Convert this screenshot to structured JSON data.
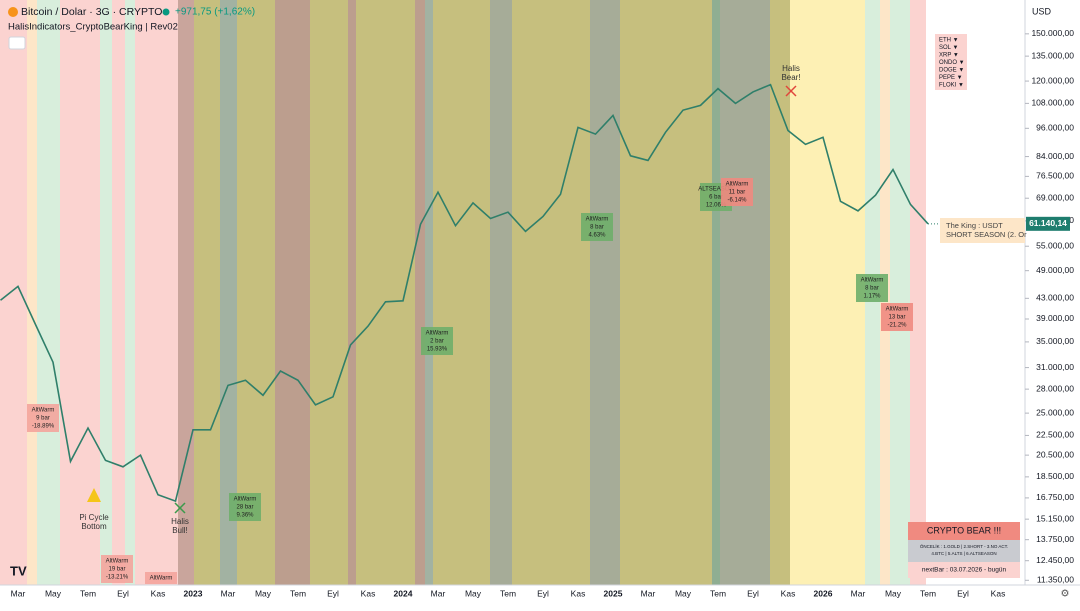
{
  "chart_data": {
    "type": "line",
    "title": "Bitcoin / Dolar · 3G · CRYPTO",
    "change": "+971,75 (+1,62%)",
    "indicator": "HalisIndicators_CryptoBearKing | Rev02",
    "currency": "USD",
    "log_scale": true,
    "color": "#2f7f6a",
    "grid": false,
    "categories": [
      null,
      null,
      "Mar",
      null,
      "May",
      null,
      "Tem",
      null,
      "Eyl",
      null,
      "Kas",
      null,
      "2023",
      null,
      "Mar",
      null,
      "May",
      null,
      "Tem",
      null,
      "Eyl",
      null,
      "Kas",
      null,
      "2024",
      null,
      "Mar",
      null,
      "May",
      null,
      "Tem",
      null,
      "Eyl",
      null,
      "Kas",
      null,
      "2025",
      null,
      "Mar",
      null,
      "May",
      null,
      "Tem",
      null,
      "Eyl",
      null,
      "Kas",
      null,
      "2026",
      null,
      "Mar",
      null,
      "May",
      null,
      "Tem",
      null,
      "Eyl",
      null,
      "Kas",
      null
    ],
    "values": [
      null,
      42600,
      45500,
      38000,
      31800,
      19900,
      23300,
      20000,
      19400,
      20500,
      17000,
      16500,
      23100,
      23100,
      28500,
      29200,
      27200,
      30500,
      29200,
      26000,
      27000,
      34500,
      37700,
      42300,
      42500,
      61000,
      71000,
      60600,
      67500,
      62700,
      64600,
      59000,
      63300,
      70300,
      96400,
      93400,
      102000,
      84300,
      82500,
      94200,
      104600,
      107000,
      115800,
      108000,
      114000,
      118000,
      95000,
      89000,
      92000,
      68000,
      65000,
      70000,
      79000,
      67000,
      61140.14,
      null,
      null,
      null,
      null,
      null
    ],
    "value_labels": [
      null,
      null,
      null,
      null,
      null,
      null,
      null,
      null,
      null,
      null,
      null,
      null,
      null,
      null,
      null,
      null,
      null,
      null,
      null,
      null,
      null,
      null,
      null,
      null,
      null,
      null,
      null,
      null,
      null,
      null,
      null,
      null,
      null,
      null,
      null,
      null,
      null,
      null,
      null,
      null,
      null,
      null,
      null,
      null,
      null,
      null,
      null,
      null,
      null,
      null,
      null,
      null,
      null,
      null,
      "61.140,14",
      null,
      null,
      null,
      null,
      null
    ],
    "ylim": [
      11100,
      176000
    ],
    "yticks": [
      {
        "value": 150000,
        "label": "150.000,00"
      },
      {
        "value": 135000,
        "label": "135.000,00"
      },
      {
        "value": 120000,
        "label": "120.000,00"
      },
      {
        "value": 108000,
        "label": "108.000,00"
      },
      {
        "value": 96000,
        "label": "96.000,00"
      },
      {
        "value": 84000,
        "label": "84.000,00"
      },
      {
        "value": 76500,
        "label": "76.500,00"
      },
      {
        "value": 69000,
        "label": "69.000,00"
      },
      {
        "value": 62000,
        "label": "62.000,00"
      },
      {
        "value": 55000,
        "label": "55.000,00"
      },
      {
        "value": 49000,
        "label": "49.000,00"
      },
      {
        "value": 43000,
        "label": "43.000,00"
      },
      {
        "value": 39000,
        "label": "39.000,00"
      },
      {
        "value": 35000,
        "label": "35.000,00"
      },
      {
        "value": 31000,
        "label": "31.000,00"
      },
      {
        "value": 28000,
        "label": "28.000,00"
      },
      {
        "value": 25000,
        "label": "25.000,00"
      },
      {
        "value": 22500,
        "label": "22.500,00"
      },
      {
        "value": 20500,
        "label": "20.500,00"
      },
      {
        "value": 18500,
        "label": "18.500,00"
      },
      {
        "value": 16750,
        "label": "16.750,00"
      },
      {
        "value": 15150,
        "label": "15.150,00"
      },
      {
        "value": 13750,
        "label": "13.750,00"
      },
      {
        "value": 12450,
        "label": "12.450,00"
      },
      {
        "value": 11350,
        "label": "11.350,00"
      }
    ],
    "annotations": [
      {
        "lines": [
          "AltWarm",
          "9 bar",
          "-18.89%"
        ],
        "color": "#f4a49c"
      },
      {
        "lines": [
          "AltWarm",
          "19 bar",
          "-13.21%"
        ],
        "color": "#f4a49c"
      },
      {
        "lines": [
          "AltWarm"
        ],
        "color": "#f4a49c"
      },
      {
        "lines": [
          "AltWarm",
          "28 bar",
          "9.36%"
        ],
        "color": "#6fae6a"
      },
      {
        "lines": [
          "AltWarm",
          "2 bar",
          "15.93%"
        ],
        "color": "#6fae6a"
      },
      {
        "lines": [
          "AltWarm",
          "8 bar",
          "4.63%"
        ],
        "color": "#6fae6a"
      },
      {
        "lines": [
          "ALTSEASON",
          "6 bar",
          "12.06%"
        ],
        "color": "#6fae6a"
      },
      {
        "lines": [
          "AltWarm",
          "11 bar",
          "-6.14%"
        ],
        "color": "#f08a80"
      },
      {
        "lines": [
          "AltWarm",
          "8 bar",
          "1.17%"
        ],
        "color": "#6fae6a"
      },
      {
        "lines": [
          "AltWarm",
          "13 bar",
          "-21.2%"
        ],
        "color": "#f08a80"
      }
    ],
    "signals": [
      {
        "lines": [
          "Pi Cycle",
          "Bottom"
        ]
      },
      {
        "lines": [
          "Halis",
          "Bull!"
        ]
      },
      {
        "lines": [
          "Halis",
          "Bear!"
        ]
      }
    ],
    "coins": [
      "ETH ▼",
      "SOL ▼",
      "XRP ▼",
      "ONDO ▼",
      "DOGE ▼",
      "PEPE ▼",
      "FLOKI ▼"
    ],
    "king": [
      "The King : USDT",
      "SHORT SEASON (2. Or"
    ],
    "table": {
      "title": "CRYPTO BEAR !!!",
      "lines": [
        "ÖNCELİK : 1.GOLD | 2.SHORT - 3.NO ACT.",
        "4.BTC | 5.ALTS | 6.ALTSEASON"
      ],
      "footer": "nextBar : 03.07.2026 - bugün"
    }
  }
}
